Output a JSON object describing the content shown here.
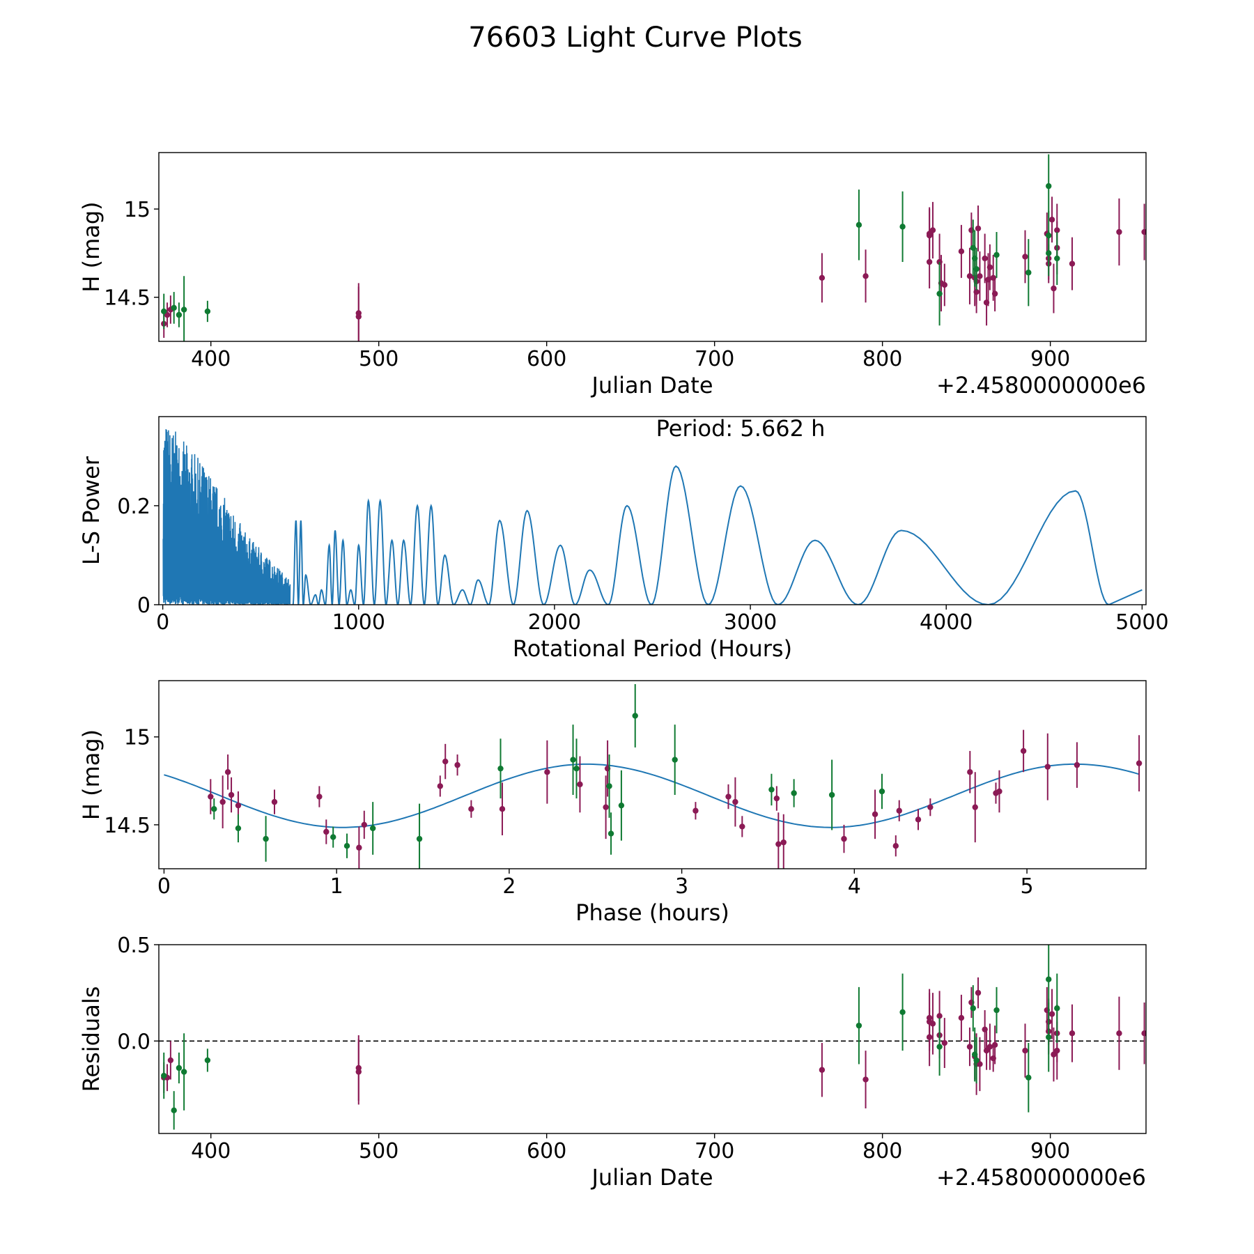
{
  "title": "76603 Light Curve Plots",
  "colors": {
    "series_a": "#8b1a55",
    "series_b": "#0f7a32",
    "curve": "#1f77b4"
  },
  "chart_data": [
    {
      "type": "scatter",
      "name": "light-curve",
      "xlabel": "Julian Date",
      "ylabel": "H (mag)",
      "offset_text": "+2.4580000000e6",
      "xlim": [
        369,
        957
      ],
      "ylim": [
        14.25,
        15.32
      ],
      "xticks": [
        400,
        500,
        600,
        700,
        800,
        900
      ],
      "yticks": [
        14.5,
        15.0
      ],
      "series": [
        {
          "name": "series_a",
          "points": [
            [
              372,
              14.35,
              0.08
            ],
            [
              374,
              14.4,
              0.07
            ],
            [
              376,
              14.43,
              0.08
            ],
            [
              488,
              14.41,
              0.17
            ],
            [
              488,
              14.39,
              0.17
            ],
            [
              764,
              14.61,
              0.14
            ],
            [
              790,
              14.62,
              0.15
            ],
            [
              828,
              14.86,
              0.15
            ],
            [
              828,
              14.85,
              0.15
            ],
            [
              828,
              14.7,
              0.15
            ],
            [
              830,
              14.88,
              0.16
            ],
            [
              834,
              14.7,
              0.16
            ],
            [
              835,
              14.58,
              0.16
            ],
            [
              837,
              14.57,
              0.12
            ],
            [
              847,
              14.76,
              0.15
            ],
            [
              852,
              14.62,
              0.16
            ],
            [
              853,
              14.88,
              0.1
            ],
            [
              855,
              14.61,
              0.16
            ],
            [
              856,
              14.59,
              0.13
            ],
            [
              856,
              14.53,
              0.12
            ],
            [
              857,
              14.89,
              0.13
            ],
            [
              858,
              14.62,
              0.14
            ],
            [
              861,
              14.72,
              0.14
            ],
            [
              862,
              14.47,
              0.13
            ],
            [
              863,
              14.6,
              0.15
            ],
            [
              864,
              14.67,
              0.13
            ],
            [
              866,
              14.61,
              0.13
            ],
            [
              867,
              14.52,
              0.1
            ],
            [
              885,
              14.73,
              0.15
            ],
            [
              898,
              14.86,
              0.12
            ],
            [
              899,
              14.72,
              0.12
            ],
            [
              899,
              14.69,
              0.11
            ],
            [
              901,
              14.94,
              0.13
            ],
            [
              902,
              14.55,
              0.14
            ],
            [
              904,
              14.88,
              0.15
            ],
            [
              904,
              14.78,
              0.15
            ],
            [
              913,
              14.69,
              0.15
            ],
            [
              941,
              14.87,
              0.19
            ],
            [
              956,
              14.87,
              0.16
            ]
          ]
        },
        {
          "name": "series_b",
          "points": [
            [
              372,
              14.42,
              0.1
            ],
            [
              378,
              14.44,
              0.09
            ],
            [
              381,
              14.4,
              0.07
            ],
            [
              384,
              14.43,
              0.19
            ],
            [
              398,
              14.42,
              0.06
            ],
            [
              786,
              14.91,
              0.2
            ],
            [
              812,
              14.9,
              0.2
            ],
            [
              834,
              14.52,
              0.18
            ],
            [
              854,
              14.78,
              0.16
            ],
            [
              855,
              14.72,
              0.16
            ],
            [
              856,
              14.66,
              0.12
            ],
            [
              868,
              14.74,
              0.13
            ],
            [
              887,
              14.64,
              0.19
            ],
            [
              899,
              15.13,
              0.18
            ],
            [
              899,
              14.85,
              0.14
            ],
            [
              899,
              14.75,
              0.13
            ],
            [
              904,
              14.72,
              0.15
            ]
          ]
        }
      ]
    },
    {
      "type": "line",
      "name": "periodogram",
      "xlabel": "Rotational Period (Hours)",
      "ylabel": "L-S Power",
      "annotation": "Period: 5.662 h",
      "xlim": [
        -20,
        5020
      ],
      "ylim": [
        0,
        0.38
      ],
      "xticks": [
        0,
        1000,
        2000,
        3000,
        4000,
        5000
      ],
      "yticks": [
        0.0,
        0.2
      ],
      "noise_region": {
        "x_range": [
          2,
          650
        ],
        "max_power": [
          0.38,
          0.28,
          0.14,
          0.05
        ]
      },
      "peaks": [
        [
          680,
          0.17
        ],
        [
          705,
          0.17
        ],
        [
          730,
          0.06
        ],
        [
          780,
          0.02
        ],
        [
          810,
          0.03
        ],
        [
          850,
          0.12
        ],
        [
          880,
          0.15
        ],
        [
          920,
          0.13
        ],
        [
          960,
          0.03
        ],
        [
          1000,
          0.12
        ],
        [
          1050,
          0.21
        ],
        [
          1110,
          0.21
        ],
        [
          1170,
          0.13
        ],
        [
          1230,
          0.13
        ],
        [
          1300,
          0.2
        ],
        [
          1370,
          0.2
        ],
        [
          1440,
          0.1
        ],
        [
          1530,
          0.03
        ],
        [
          1610,
          0.05
        ],
        [
          1720,
          0.17
        ],
        [
          1860,
          0.19
        ],
        [
          2030,
          0.12
        ],
        [
          2180,
          0.07
        ],
        [
          2370,
          0.2
        ],
        [
          2620,
          0.28
        ],
        [
          2950,
          0.24
        ],
        [
          3330,
          0.13
        ],
        [
          3770,
          0.15
        ],
        [
          4660,
          0.23
        ]
      ],
      "troughs": [
        [
          2500,
          0
        ],
        [
          2770,
          0
        ],
        [
          3140,
          0
        ],
        [
          3550,
          0
        ],
        [
          4150,
          0
        ]
      ],
      "endpoints": [
        [
          5000,
          0.03
        ]
      ]
    },
    {
      "type": "scatter",
      "name": "phase-folded",
      "xlabel": "Phase (hours)",
      "ylabel": "H (mag)",
      "xlim": [
        -0.03,
        5.69
      ],
      "ylim": [
        14.25,
        15.32
      ],
      "xticks": [
        0,
        1,
        2,
        3,
        4,
        5
      ],
      "yticks": [
        14.5,
        15.0
      ],
      "model": {
        "mean": 14.665,
        "amplitude": 0.18,
        "period": 2.831,
        "peak_phase": 2.45
      },
      "series": [
        {
          "name": "series_a",
          "points": [
            [
              0.27,
              14.66,
              0.1
            ],
            [
              0.34,
              14.63,
              0.15
            ],
            [
              0.37,
              14.8,
              0.1
            ],
            [
              0.39,
              14.67,
              0.1
            ],
            [
              0.43,
              14.61,
              0.08
            ],
            [
              0.64,
              14.63,
              0.07
            ],
            [
              0.9,
              14.66,
              0.06
            ],
            [
              0.94,
              14.46,
              0.07
            ],
            [
              1.13,
              14.37,
              0.12
            ],
            [
              1.16,
              14.5,
              0.08
            ],
            [
              1.6,
              14.72,
              0.06
            ],
            [
              1.63,
              14.86,
              0.1
            ],
            [
              1.7,
              14.84,
              0.06
            ],
            [
              1.78,
              14.59,
              0.05
            ],
            [
              1.96,
              14.59,
              0.15
            ],
            [
              2.22,
              14.8,
              0.18
            ],
            [
              2.41,
              14.73,
              0.16
            ],
            [
              2.56,
              14.6,
              0.18
            ],
            [
              2.57,
              14.82,
              0.16
            ],
            [
              3.08,
              14.58,
              0.05
            ],
            [
              3.27,
              14.66,
              0.07
            ],
            [
              3.31,
              14.63,
              0.14
            ],
            [
              3.35,
              14.49,
              0.06
            ],
            [
              3.55,
              14.65,
              0.07
            ],
            [
              3.56,
              14.39,
              0.18
            ],
            [
              3.59,
              14.4,
              0.16
            ],
            [
              3.94,
              14.42,
              0.08
            ],
            [
              4.12,
              14.56,
              0.14
            ],
            [
              4.24,
              14.38,
              0.06
            ],
            [
              4.26,
              14.58,
              0.06
            ],
            [
              4.37,
              14.53,
              0.06
            ],
            [
              4.44,
              14.6,
              0.05
            ],
            [
              4.67,
              14.8,
              0.12
            ],
            [
              4.7,
              14.6,
              0.2
            ],
            [
              4.82,
              14.68,
              0.06
            ],
            [
              4.84,
              14.69,
              0.12
            ],
            [
              4.98,
              14.92,
              0.12
            ],
            [
              5.12,
              14.83,
              0.19
            ],
            [
              5.29,
              14.84,
              0.13
            ],
            [
              5.65,
              14.85,
              0.16
            ]
          ]
        },
        {
          "name": "series_b",
          "points": [
            [
              0.29,
              14.59,
              0.06
            ],
            [
              0.43,
              14.48,
              0.08
            ],
            [
              0.59,
              14.42,
              0.13
            ],
            [
              0.98,
              14.43,
              0.06
            ],
            [
              1.06,
              14.38,
              0.07
            ],
            [
              1.21,
              14.48,
              0.15
            ],
            [
              1.48,
              14.42,
              0.2
            ],
            [
              1.95,
              14.82,
              0.17
            ],
            [
              2.37,
              14.87,
              0.2
            ],
            [
              2.39,
              14.82,
              0.17
            ],
            [
              2.58,
              14.72,
              0.18
            ],
            [
              2.59,
              14.45,
              0.12
            ],
            [
              2.65,
              14.61,
              0.2
            ],
            [
              2.73,
              15.12,
              0.18
            ],
            [
              2.96,
              14.87,
              0.2
            ],
            [
              3.52,
              14.7,
              0.09
            ],
            [
              3.65,
              14.68,
              0.08
            ],
            [
              3.87,
              14.67,
              0.2
            ],
            [
              4.16,
              14.69,
              0.1
            ]
          ]
        }
      ]
    },
    {
      "type": "scatter",
      "name": "residuals",
      "xlabel": "Julian Date",
      "ylabel": "Residuals",
      "offset_text": "+2.4580000000e6",
      "xlim": [
        369,
        957
      ],
      "ylim": [
        -0.48,
        0.5
      ],
      "xticks": [
        400,
        500,
        600,
        700,
        800,
        900
      ],
      "yticks": [
        0.0,
        0.5
      ],
      "yticklabels": [
        "0.0",
        "0.5"
      ],
      "reference_line": 0.0,
      "series": [
        {
          "name": "series_a",
          "points": [
            [
              372,
              -0.19,
              0.08
            ],
            [
              374,
              -0.19,
              0.07
            ],
            [
              376,
              -0.1,
              0.1
            ],
            [
              488,
              -0.14,
              0.17
            ],
            [
              488,
              -0.16,
              0.17
            ],
            [
              764,
              -0.15,
              0.14
            ],
            [
              790,
              -0.2,
              0.15
            ],
            [
              828,
              0.12,
              0.15
            ],
            [
              828,
              0.1,
              0.15
            ],
            [
              828,
              0.02,
              0.15
            ],
            [
              830,
              0.09,
              0.16
            ],
            [
              834,
              0.13,
              0.13
            ],
            [
              834,
              0.03,
              0.12
            ],
            [
              837,
              -0.01,
              0.13
            ],
            [
              847,
              0.12,
              0.12
            ],
            [
              852,
              -0.03,
              0.1
            ],
            [
              853,
              0.2,
              0.08
            ],
            [
              855,
              -0.08,
              0.12
            ],
            [
              856,
              -0.12,
              0.16
            ],
            [
              857,
              0.25,
              0.08
            ],
            [
              858,
              -0.12,
              0.14
            ],
            [
              861,
              0.06,
              0.1
            ],
            [
              862,
              -0.05,
              0.1
            ],
            [
              864,
              -0.03,
              0.12
            ],
            [
              866,
              -0.09,
              0.07
            ],
            [
              867,
              -0.02,
              0.1
            ],
            [
              885,
              -0.05,
              0.14
            ],
            [
              898,
              0.16,
              0.12
            ],
            [
              899,
              0.1,
              0.12
            ],
            [
              899,
              0.05,
              0.12
            ],
            [
              901,
              0.14,
              0.13
            ],
            [
              902,
              -0.07,
              0.14
            ],
            [
              904,
              0.04,
              0.15
            ],
            [
              904,
              -0.05,
              0.15
            ],
            [
              913,
              0.04,
              0.15
            ],
            [
              941,
              0.04,
              0.19
            ],
            [
              956,
              0.04,
              0.16
            ]
          ]
        },
        {
          "name": "series_b",
          "points": [
            [
              372,
              -0.18,
              0.12
            ],
            [
              378,
              -0.36,
              0.1
            ],
            [
              381,
              -0.14,
              0.08
            ],
            [
              384,
              -0.16,
              0.2
            ],
            [
              398,
              -0.1,
              0.06
            ],
            [
              786,
              0.08,
              0.2
            ],
            [
              812,
              0.15,
              0.2
            ],
            [
              834,
              -0.03,
              0.15
            ],
            [
              854,
              0.17,
              0.12
            ],
            [
              855,
              -0.07,
              0.14
            ],
            [
              856,
              -0.1,
              0.12
            ],
            [
              868,
              0.16,
              0.12
            ],
            [
              887,
              -0.19,
              0.18
            ],
            [
              899,
              0.32,
              0.2
            ],
            [
              899,
              0.02,
              0.18
            ],
            [
              904,
              0.17,
              0.18
            ]
          ]
        }
      ]
    }
  ]
}
